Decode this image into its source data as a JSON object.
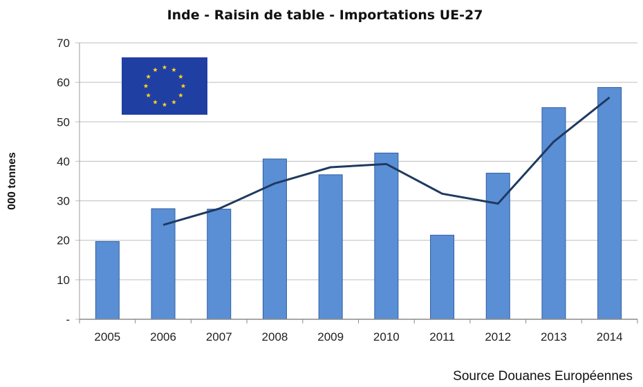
{
  "chart_data": {
    "type": "bar",
    "title": "Inde - Raisin de table - Importations UE-27",
    "ylabel": "000 tonnes",
    "xlabel": "",
    "categories": [
      "2005",
      "2006",
      "2007",
      "2008",
      "2009",
      "2010",
      "2011",
      "2012",
      "2013",
      "2014"
    ],
    "series": [
      {
        "values": [
          19.7,
          28.0,
          27.9,
          40.6,
          36.6,
          42.1,
          21.3,
          37.0,
          53.6,
          58.7
        ],
        "color": "#5a8fd6"
      },
      {
        "type": "line",
        "values": [
          null,
          23.9,
          28.0,
          34.4,
          38.5,
          39.3,
          31.8,
          29.3,
          45.0,
          56.2
        ],
        "color": "#1f3a60"
      }
    ],
    "ylim": [
      0,
      70
    ],
    "yticks": [
      "-",
      "10",
      "20",
      "30",
      "40",
      "50",
      "60",
      "70"
    ],
    "grid": true,
    "source": "Source Douanes Européennes",
    "flag_icon": "eu-flag-icon"
  }
}
